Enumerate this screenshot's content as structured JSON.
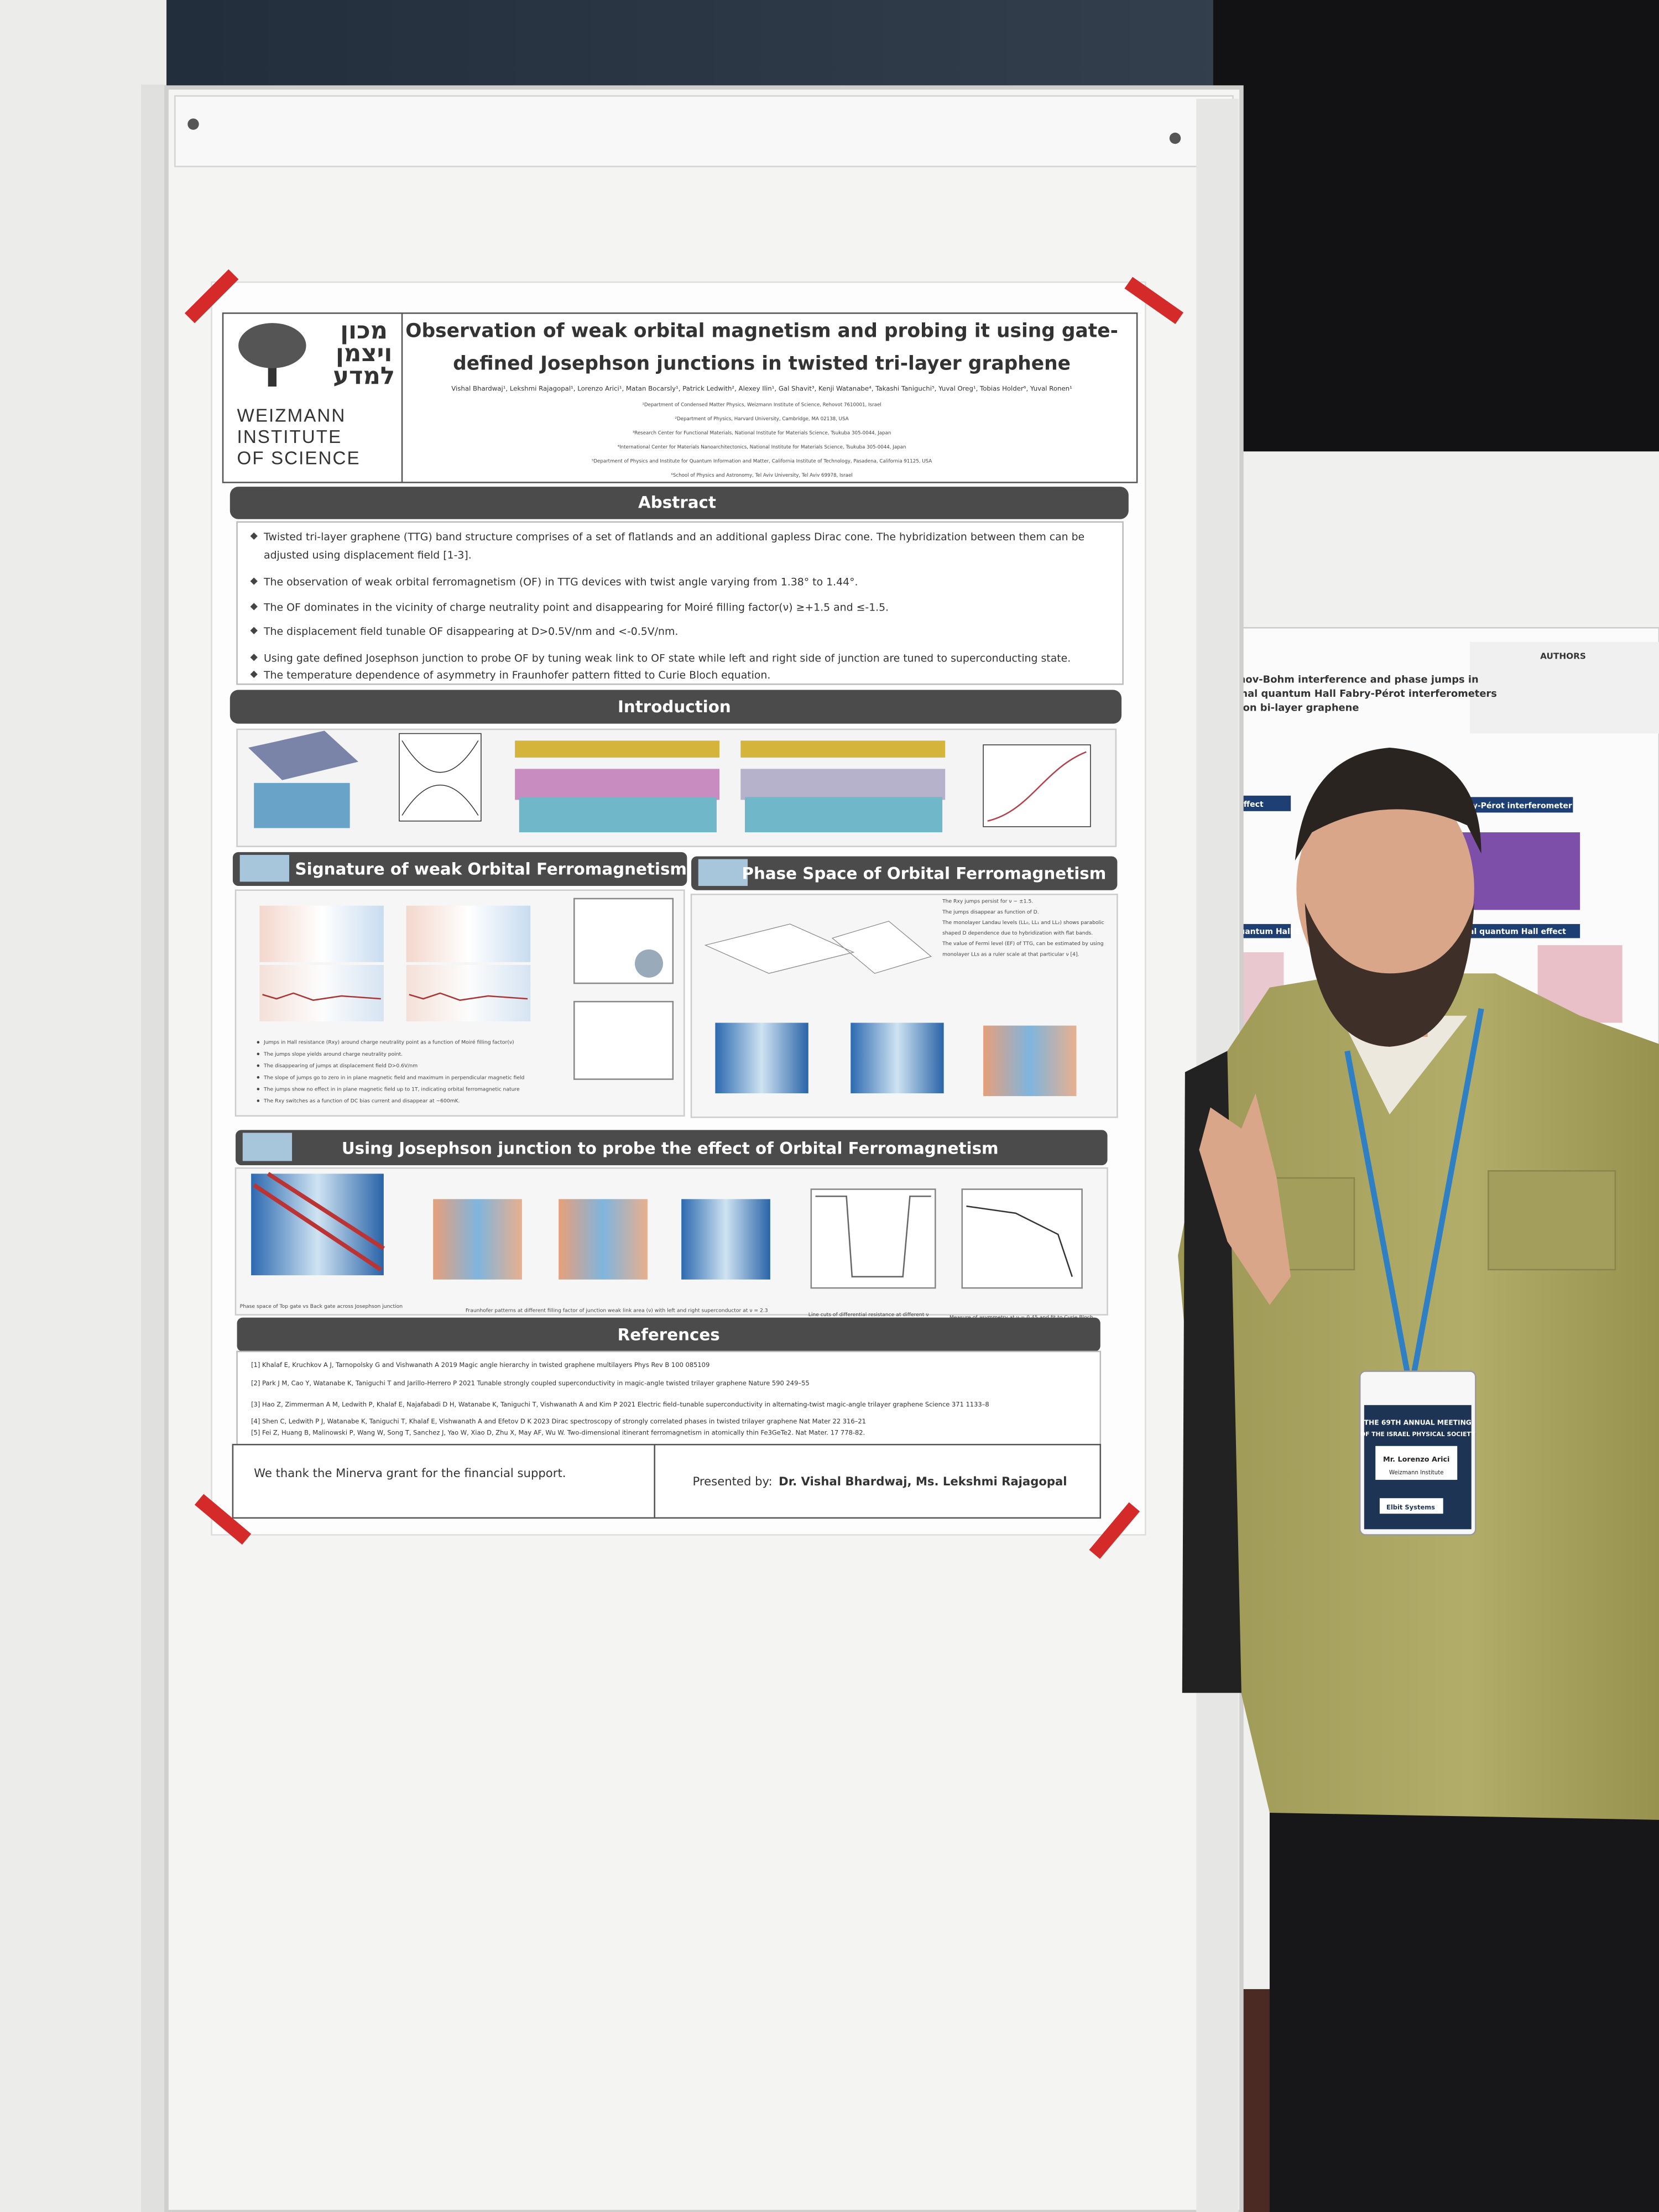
{
  "poster": {
    "logo_hebrew": [
      "מכון",
      "ויצמן",
      "למדע"
    ],
    "institution": [
      "WEIZMANN",
      "INSTITUTE",
      "OF SCIENCE"
    ],
    "title": [
      "Observation of weak orbital magnetism and probing it using gate-",
      "defined Josephson junctions in twisted tri-layer graphene"
    ],
    "authors": "Vishal Bhardwaj¹, Lekshmi Rajagopal¹, Lorenzo Arici¹, Matan Bocarsly¹, Patrick Ledwith², Alexey Ilin¹, Gal Shavit³, Kenji Watanabe⁴, Takashi Taniguchi⁵, Yuval Oreg¹, Tobias Holder⁶, Yuval Ronen¹",
    "affiliations": [
      "¹Department of Condensed Matter Physics, Weizmann Institute of Science, Rehovot 7610001, Israel",
      "²Department of Physics, Harvard University, Cambridge, MA 02138, USA",
      "³Research Center for Functional Materials, National Institute for Materials Science, Tsukuba 305-0044, Japan",
      "⁴International Center for Materials Nanoarchitectonics, National Institute for Materials Science, Tsukuba 305-0044, Japan",
      "⁵Department of Physics and Institute for Quantum Information and Matter, California Institute of Technology, Pasadena, California 91125, USA",
      "⁶School of Physics and Astronomy, Tel Aviv University, Tel Aviv 69978, Israel"
    ],
    "abstract": {
      "heading": "Abstract",
      "bullets": [
        [
          "Twisted tri-layer graphene (TTG) band structure comprises of a set of flatlands and an additional gapless Dirac cone. The hybridization between them can be",
          "adjusted using  displacement field [1-3]."
        ],
        [
          "The observation of weak orbital ferromagnetism (OF) in TTG devices with twist angle varying from 1.38° to 1.44°."
        ],
        [
          "The OF dominates in the vicinity of charge neutrality point and disappearing for Moiré filling factor(ν) ≥+1.5 and ≤-1.5."
        ],
        [
          "The displacement field tunable OF disappearing  at D>0.5V/nm and <-0.5V/nm."
        ],
        [
          "Using gate defined Josephson junction to probe OF by tuning weak link to OF state while left and right side of junction are tuned to superconducting state."
        ],
        [
          "The temperature dependence  of asymmetry in Fraunhofer pattern fitted to Curie Bloch equation."
        ]
      ]
    },
    "introduction_heading": "Introduction",
    "signature": {
      "heading": "Signature of weak Orbital Ferromagnetism",
      "bullets": [
        "Jumps in Hall resistance (Rxy) around charge neutrality point as a function of Moiré filling factor(ν)",
        "The jumps slope yields around charge neutrality point.",
        "The disappearing of jumps at displacement field D>0.6V/nm",
        "The slope of jumps go to zero in in plane magnetic field and maximum in perpendicular magnetic field",
        "The jumps show no effect in in plane magnetic field up to 1T, indicating orbital ferromagnetic nature",
        "The Rxy switches as a function of DC bias current and disappear at ~600mK."
      ]
    },
    "phase_space": {
      "heading": "Phase Space of Orbital Ferromagnetism",
      "bullets": [
        "The Rxy jumps persist for ν ~ ±1.5.",
        "The jumps disappear as function of D.",
        "The monolayer Landau levels (LL₀, LL₁ and LL₂) shows parabolic",
        "shaped D dependence due to hybridization with flat bands.",
        "The value of Fermi level (EF) of TTG, can be estimated by using",
        "monolayer LLs as a ruler scale at that particular ν [4]."
      ]
    },
    "josephson": {
      "heading": "Using Josephson junction to probe the effect of Orbital Ferromagnetism",
      "captions": [
        "Phase space of Top gate vs Back gate across Josephson junction",
        "Fraunhofer patterns at different filling factor of junction weak link area (ν) with left and right superconductor at ν = 2.3",
        "Line cuts of differential resistance at different ν",
        "Measure of asymmetry at ν = 0.45 and fit to Curie Bloch"
      ]
    },
    "references_heading": "References",
    "references": [
      "[1] Khalaf E, Kruchkov A J, Tarnopolsky G and Vishwanath A 2019 Magic angle hierarchy in twisted graphene multilayers Phys Rev B 100 085109",
      "[2] Park J M, Cao Y, Watanabe K, Taniguchi T and Jarillo-Herrero P 2021 Tunable strongly coupled superconductivity in magic-angle twisted trilayer graphene Nature 590 249–55",
      "[3] Hao Z, Zimmerman A M, Ledwith P, Khalaf E, Najafabadi D H, Watanabe K, Taniguchi T, Vishwanath A and Kim P 2021 Electric field–tunable superconductivity in alternating-twist magic-angle trilayer graphene Science 371 1133–8",
      "[4] Shen C, Ledwith P J, Watanabe K, Taniguchi T, Khalaf E, Vishwanath A and Efetov D K 2023 Dirac spectroscopy of strongly correlated phases in twisted trilayer graphene Nat Mater 22 316–21",
      "[5] Fei Z, Huang B, Malinowski P, Wang W, Song T, Sanchez J, Yao W, Xiao D, Zhu X, May AF, Wu W. Two-dimensional itinerant ferromagnetism in atomically thin Fe3GeTe2. Nat Mater. 17 778-82."
    ],
    "acknowledgment": "We thank the Minerva grant for the financial support.",
    "presented_by_label": "Presented by:",
    "presenters": "Dr. Vishal Bhardwaj, Ms. Lekshmi Rajagopal"
  },
  "neighbor_poster": {
    "authors_heading": "AUTHORS",
    "title": [
      "haronov-Bohm interference and phase jumps in",
      "actional quantum Hall Fabry-Pérot interferometers",
      "ased on bi-layer graphene"
    ],
    "headings": [
      "n Hall effect",
      "Fabry-Pérot interferometer",
      "teger quantum Hall E",
      "actional quantum Hall effect"
    ]
  },
  "badge": {
    "event": [
      "THE 69TH ANNUAL MEETING",
      "OF THE ISRAEL PHYSICAL SOCIETY"
    ],
    "name": "Mr. Lorenzo Arici",
    "affiliation": "Weizmann Institute",
    "sponsor": "Elbit Systems"
  }
}
